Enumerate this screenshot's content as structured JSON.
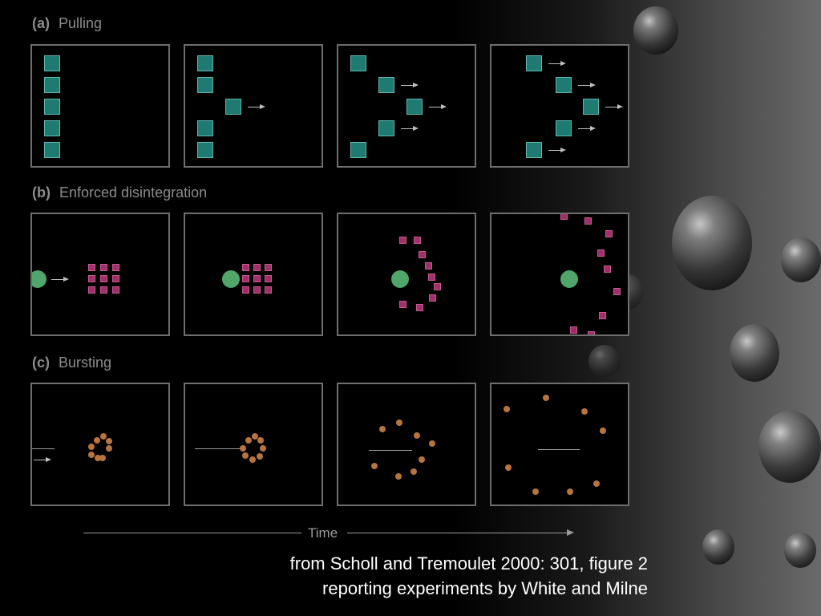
{
  "rows": {
    "a": {
      "letter": "(a)",
      "title": "Pulling"
    },
    "b": {
      "letter": "(b)",
      "title": "Enforced disintegration"
    },
    "c": {
      "letter": "(c)",
      "title": "Bursting"
    }
  },
  "time_label": "Time",
  "caption": {
    "line1": "from Scholl and Tremoulet 2000: 301, figure 2",
    "line2": "reporting experiments by White and Milne"
  },
  "colors": {
    "teal_square": "#1f7b72",
    "magenta_square": "#a1306a",
    "green_ball": "#4fa56a",
    "orange_dot": "#b8743e"
  }
}
